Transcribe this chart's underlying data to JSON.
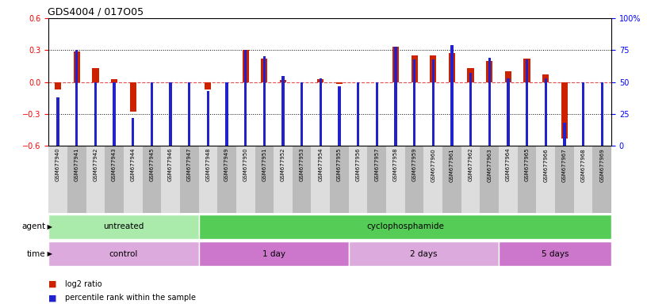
{
  "title": "GDS4004 / 017O05",
  "samples": [
    "GSM677940",
    "GSM677941",
    "GSM677942",
    "GSM677943",
    "GSM677944",
    "GSM677945",
    "GSM677946",
    "GSM677947",
    "GSM677948",
    "GSM677949",
    "GSM677950",
    "GSM677951",
    "GSM677952",
    "GSM677953",
    "GSM677954",
    "GSM677955",
    "GSM677956",
    "GSM677957",
    "GSM677958",
    "GSM677959",
    "GSM677960",
    "GSM677961",
    "GSM677962",
    "GSM677963",
    "GSM677964",
    "GSM677965",
    "GSM677966",
    "GSM677967",
    "GSM677968",
    "GSM677969"
  ],
  "log2_ratio": [
    -0.07,
    0.29,
    0.13,
    0.03,
    -0.28,
    0.0,
    0.0,
    0.0,
    -0.07,
    0.0,
    0.3,
    0.22,
    0.02,
    0.0,
    0.03,
    -0.02,
    0.0,
    0.0,
    0.33,
    0.25,
    0.25,
    0.27,
    0.13,
    0.2,
    0.1,
    0.22,
    0.07,
    -0.53,
    0.0,
    0.0
  ],
  "percentile": [
    38,
    75,
    50,
    50,
    22,
    50,
    50,
    50,
    43,
    50,
    75,
    70,
    55,
    50,
    53,
    47,
    50,
    50,
    78,
    68,
    68,
    79,
    57,
    69,
    53,
    68,
    53,
    18,
    50,
    50
  ],
  "agent_groups": [
    {
      "label": "untreated",
      "start": 0,
      "end": 8,
      "color": "#aaeaaa"
    },
    {
      "label": "cyclophosphamide",
      "start": 8,
      "end": 30,
      "color": "#55cc55"
    }
  ],
  "time_groups": [
    {
      "label": "control",
      "start": 0,
      "end": 8,
      "color": "#ddaadd"
    },
    {
      "label": "1 day",
      "start": 8,
      "end": 16,
      "color": "#cc77cc"
    },
    {
      "label": "2 days",
      "start": 16,
      "end": 24,
      "color": "#ddaadd"
    },
    {
      "label": "5 days",
      "start": 24,
      "end": 30,
      "color": "#cc77cc"
    }
  ],
  "ylim_left": [
    -0.6,
    0.6
  ],
  "ylim_right": [
    0,
    100
  ],
  "yticks_left": [
    -0.6,
    -0.3,
    0.0,
    0.3,
    0.6
  ],
  "yticks_right": [
    0,
    25,
    50,
    75,
    100
  ],
  "ytick_labels_right": [
    "0",
    "25",
    "50",
    "75",
    "100%"
  ],
  "hlines_dotted": [
    0.3,
    -0.3
  ],
  "bar_color_red": "#cc2200",
  "bar_color_blue": "#2222cc",
  "zero_line_color": "#dd0000",
  "bg_color": "#ffffff",
  "plot_bg_color": "#ffffff",
  "xtick_bg_even": "#dddddd",
  "xtick_bg_odd": "#bbbbbb",
  "legend_red": "log2 ratio",
  "legend_blue": "percentile rank within the sample"
}
